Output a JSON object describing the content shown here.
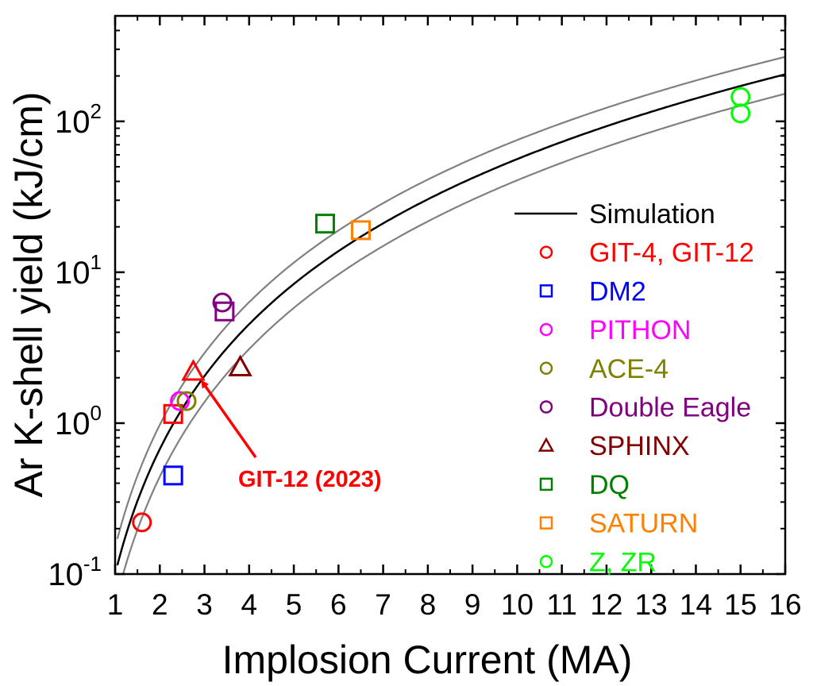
{
  "chart_data": {
    "type": "scatter",
    "xlabel": "Implosion Current (MA)",
    "ylabel": "Ar K-shell yield (kJ/cm)",
    "xlim": [
      1,
      16
    ],
    "ylim": [
      0.1,
      500
    ],
    "yscale": "log",
    "x_ticks": [
      "1",
      "2",
      "3",
      "4",
      "5",
      "6",
      "7",
      "8",
      "9",
      "10",
      "11",
      "12",
      "13",
      "14",
      "15",
      "16"
    ],
    "y_ticks": [
      {
        "value": 0.1,
        "base": "10",
        "exp": "-1"
      },
      {
        "value": 1,
        "base": "10",
        "exp": "0"
      },
      {
        "value": 10,
        "base": "10",
        "exp": "1"
      },
      {
        "value": 100,
        "base": "10",
        "exp": "2"
      }
    ],
    "curves": [
      {
        "name": "Simulation",
        "color": "#000000",
        "coef": 0.1,
        "exp": 2.75
      },
      {
        "name": "upper bound",
        "color": "#808080",
        "coef": 0.15,
        "exp": 2.7
      },
      {
        "name": "lower bound",
        "color": "#808080",
        "coef": 0.063,
        "exp": 2.81
      }
    ],
    "series": [
      {
        "name": "GIT-4, GIT-12",
        "color": "#ff0000",
        "marker": "circle",
        "points": [
          [
            1.6,
            0.22
          ]
        ]
      },
      {
        "name": "GIT-4, GIT-12",
        "color": "#ff0000",
        "marker": "square",
        "points": [
          [
            2.3,
            1.15
          ]
        ]
      },
      {
        "name": "GIT-4, GIT-12",
        "color": "#ff0000",
        "marker": "triangle",
        "points": [
          [
            2.75,
            2.2
          ]
        ]
      },
      {
        "name": "DM2",
        "color": "#0000ff",
        "marker": "square",
        "points": [
          [
            2.3,
            0.45
          ]
        ]
      },
      {
        "name": "PITHON",
        "color": "#ff00ff",
        "marker": "circle",
        "points": [
          [
            2.45,
            1.4
          ]
        ]
      },
      {
        "name": "ACE-4",
        "color": "#808000",
        "marker": "circle",
        "points": [
          [
            2.6,
            1.4
          ]
        ]
      },
      {
        "name": "Double Eagle",
        "color": "#800080",
        "marker": "circle",
        "points": [
          [
            3.4,
            6.3
          ]
        ]
      },
      {
        "name": "Double Eagle",
        "color": "#800080",
        "marker": "square",
        "points": [
          [
            3.45,
            5.5
          ]
        ]
      },
      {
        "name": "SPHINX",
        "color": "#800000",
        "marker": "triangle",
        "points": [
          [
            3.8,
            2.35
          ]
        ]
      },
      {
        "name": "DQ",
        "color": "#008000",
        "marker": "square",
        "points": [
          [
            5.7,
            21
          ]
        ]
      },
      {
        "name": "SATURN",
        "color": "#ff8000",
        "marker": "square",
        "points": [
          [
            6.5,
            19
          ]
        ]
      },
      {
        "name": "Z, ZR",
        "color": "#00ff00",
        "marker": "circle",
        "points": [
          [
            15,
            145
          ],
          [
            15,
            113
          ]
        ]
      }
    ],
    "legend": {
      "placement": "right",
      "entries": [
        {
          "label": "Simulation",
          "color": "#000000",
          "marker": "line"
        },
        {
          "label": "GIT-4, GIT-12",
          "color": "#ff0000",
          "marker": "circle"
        },
        {
          "label": "DM2",
          "color": "#0000ff",
          "marker": "square"
        },
        {
          "label": "PITHON",
          "color": "#ff00ff",
          "marker": "circle"
        },
        {
          "label": "ACE-4",
          "color": "#808000",
          "marker": "circle"
        },
        {
          "label": "Double Eagle",
          "color": "#800080",
          "marker": "circle"
        },
        {
          "label": "SPHINX",
          "color": "#800000",
          "marker": "triangle"
        },
        {
          "label": "DQ",
          "color": "#008000",
          "marker": "square"
        },
        {
          "label": "SATURN",
          "color": "#ff8000",
          "marker": "square"
        },
        {
          "label": "Z, ZR",
          "color": "#00ff00",
          "marker": "circle"
        }
      ]
    },
    "annotation": {
      "text": "GIT-12 (2023)",
      "color": "#ff0000",
      "points_to": [
        2.75,
        2.2
      ]
    }
  }
}
